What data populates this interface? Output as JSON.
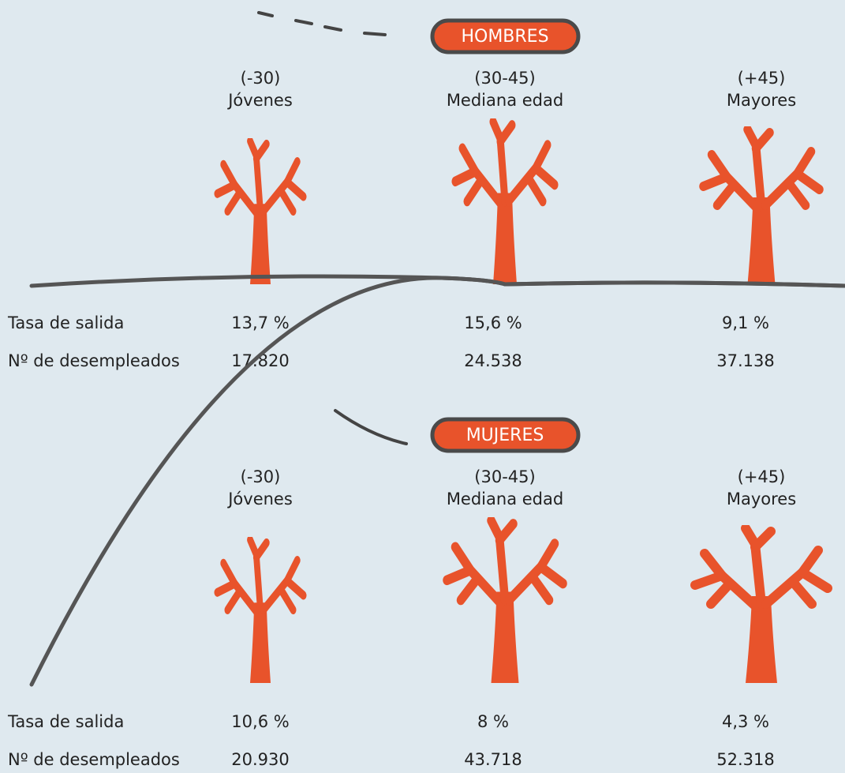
{
  "sections": [
    {
      "title": "HOMBRES",
      "groups": [
        {
          "range": "(-30)",
          "label": "Jóvenes"
        },
        {
          "range": "(30-45)",
          "label": "Mediana edad"
        },
        {
          "range": "(+45)",
          "label": "Mayores"
        }
      ],
      "rows": [
        {
          "label": "Tasa de salida",
          "values": [
            "13,7 %",
            "15,6 %",
            "9,1 %"
          ]
        },
        {
          "label": "Nº de desempleados",
          "values": [
            "17.820",
            "24.538",
            "37.138"
          ]
        }
      ]
    },
    {
      "title": "MUJERES",
      "groups": [
        {
          "range": "(-30)",
          "label": "Jóvenes"
        },
        {
          "range": "(30-45)",
          "label": "Mediana edad"
        },
        {
          "range": "(+45)",
          "label": "Mayores"
        }
      ],
      "rows": [
        {
          "label": "Tasa de salida",
          "values": [
            "10,6 %",
            "8 %",
            "4,3 %"
          ]
        },
        {
          "label": "Nº de desempleados",
          "values": [
            "20.930",
            "43.718",
            "52.318"
          ]
        }
      ]
    }
  ]
}
